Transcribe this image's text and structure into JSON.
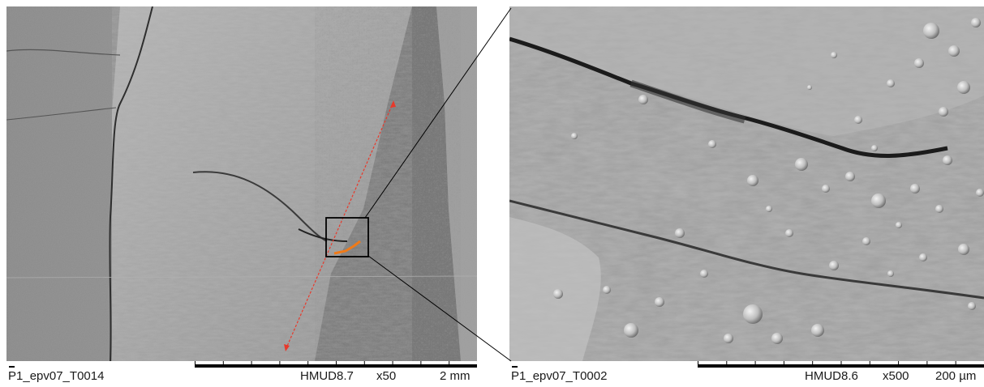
{
  "left_panel": {
    "image_id": "P1_epv07_T0014",
    "instrument": "HMUD8.7",
    "magnification": "x50",
    "scale": "2 mm"
  },
  "right_panel": {
    "image_id": "P1_epv07_T0002",
    "instrument": "HMUD8.6",
    "magnification": "x500",
    "scale": "200 µm"
  },
  "colors": {
    "measure_line": "#e8392b",
    "crack_highlight": "#f07a18",
    "zoom_box": "#000000"
  }
}
